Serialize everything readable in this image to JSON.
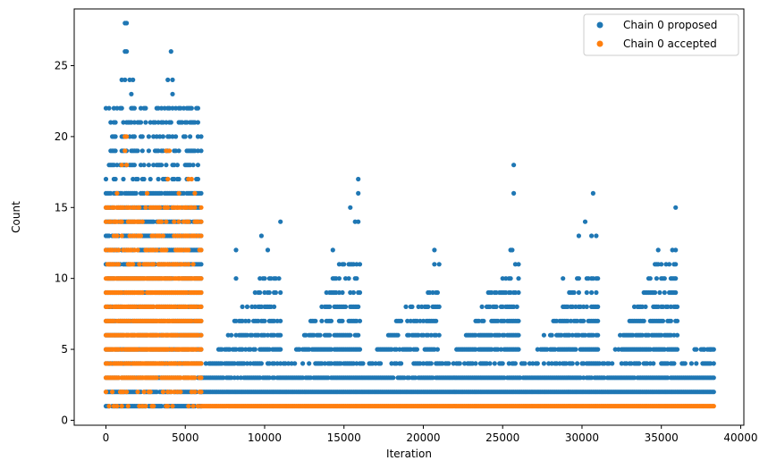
{
  "chart_data": {
    "type": "scatter",
    "title": "",
    "xlabel": "Iteration",
    "ylabel": "Count",
    "xlim": [
      -2000,
      40200
    ],
    "ylim": [
      -0.35,
      29.0
    ],
    "xticks": [
      0,
      5000,
      10000,
      15000,
      20000,
      25000,
      30000,
      35000,
      40000
    ],
    "yticks": [
      0,
      5,
      10,
      15,
      20,
      25
    ],
    "grid": false,
    "legend_position": "top-right",
    "x_max": 38300,
    "series": [
      {
        "name": "Chain 0 proposed",
        "color": "#1f77b4",
        "x_max": 38300,
        "bands": [
          {
            "x": [
              0,
              6000
            ],
            "y": [
              1,
              16
            ],
            "density": 0.9
          },
          {
            "x": [
              0,
              6000
            ],
            "y": [
              17,
              22
            ],
            "density": 0.45
          },
          {
            "x": [
              6000,
              38300
            ],
            "y": [
              2,
              2
            ],
            "density": 1.0
          },
          {
            "x": [
              6000,
              38300
            ],
            "y": [
              3,
              3
            ],
            "density": 0.92
          },
          {
            "x": [
              6000,
              38300
            ],
            "y": [
              4,
              4
            ],
            "density": 0.62
          }
        ],
        "cycles": [
          {
            "x": [
              6000,
              11000
            ],
            "peak": 10
          },
          {
            "x": [
              11000,
              16000
            ],
            "peak": 11
          },
          {
            "x": [
              16000,
              21000
            ],
            "peak": 9
          },
          {
            "x": [
              21000,
              26000
            ],
            "peak": 10
          },
          {
            "x": [
              26000,
              31000
            ],
            "peak": 10
          },
          {
            "x": [
              31000,
              36000
            ],
            "peak": 11
          },
          {
            "x": [
              36000,
              38300
            ],
            "peak": 5
          }
        ],
        "outliers": [
          {
            "x": 1200,
            "y": 28
          },
          {
            "x": 1300,
            "y": 28
          },
          {
            "x": 1200,
            "y": 26
          },
          {
            "x": 1300,
            "y": 26
          },
          {
            "x": 4100,
            "y": 26
          },
          {
            "x": 1000,
            "y": 24
          },
          {
            "x": 1200,
            "y": 24
          },
          {
            "x": 1500,
            "y": 24
          },
          {
            "x": 1700,
            "y": 24
          },
          {
            "x": 3900,
            "y": 24
          },
          {
            "x": 4200,
            "y": 24
          },
          {
            "x": 1600,
            "y": 23
          },
          {
            "x": 4200,
            "y": 23
          },
          {
            "x": 8200,
            "y": 12
          },
          {
            "x": 8200,
            "y": 10
          },
          {
            "x": 9800,
            "y": 13
          },
          {
            "x": 10200,
            "y": 12
          },
          {
            "x": 11000,
            "y": 14
          },
          {
            "x": 15400,
            "y": 15
          },
          {
            "x": 15700,
            "y": 14
          },
          {
            "x": 15900,
            "y": 17
          },
          {
            "x": 15900,
            "y": 16
          },
          {
            "x": 15900,
            "y": 14
          },
          {
            "x": 14300,
            "y": 12
          },
          {
            "x": 20700,
            "y": 12
          },
          {
            "x": 20700,
            "y": 11
          },
          {
            "x": 21000,
            "y": 11
          },
          {
            "x": 25500,
            "y": 12
          },
          {
            "x": 25600,
            "y": 12
          },
          {
            "x": 25700,
            "y": 18
          },
          {
            "x": 25700,
            "y": 16
          },
          {
            "x": 25800,
            "y": 11
          },
          {
            "x": 26000,
            "y": 11
          },
          {
            "x": 30200,
            "y": 14
          },
          {
            "x": 29800,
            "y": 13
          },
          {
            "x": 30600,
            "y": 13
          },
          {
            "x": 30900,
            "y": 13
          },
          {
            "x": 30700,
            "y": 16
          },
          {
            "x": 28800,
            "y": 10
          },
          {
            "x": 35700,
            "y": 12
          },
          {
            "x": 35900,
            "y": 12
          },
          {
            "x": 35900,
            "y": 15
          },
          {
            "x": 34800,
            "y": 12
          },
          {
            "x": 34600,
            "y": 11
          },
          {
            "x": 35300,
            "y": 11
          },
          {
            "x": 37700,
            "y": 5
          },
          {
            "x": 38100,
            "y": 5
          }
        ]
      },
      {
        "name": "Chain 0 accepted",
        "color": "#ff7f0e",
        "x_max": 38300,
        "bands": [
          {
            "x": [
              0,
              6000
            ],
            "y": [
              3,
              10
            ],
            "density": 0.93
          },
          {
            "x": [
              0,
              6000
            ],
            "y": [
              11,
              15
            ],
            "density": 0.55
          },
          {
            "x": [
              0,
              6000
            ],
            "y": [
              2,
              2
            ],
            "density": 0.35
          },
          {
            "x": [
              0,
              6000
            ],
            "y": [
              1,
              1
            ],
            "density": 0.25
          },
          {
            "x": [
              6000,
              38300
            ],
            "y": [
              1,
              1
            ],
            "density": 1.0
          }
        ],
        "outliers": [
          {
            "x": 1200,
            "y": 20
          },
          {
            "x": 1300,
            "y": 20
          },
          {
            "x": 1200,
            "y": 19
          },
          {
            "x": 4000,
            "y": 19
          },
          {
            "x": 3800,
            "y": 19
          },
          {
            "x": 1300,
            "y": 18
          },
          {
            "x": 1000,
            "y": 18
          },
          {
            "x": 3900,
            "y": 17
          },
          {
            "x": 5200,
            "y": 17
          },
          {
            "x": 5400,
            "y": 17
          },
          {
            "x": 4600,
            "y": 16
          },
          {
            "x": 5600,
            "y": 16
          },
          {
            "x": 700,
            "y": 16
          },
          {
            "x": 2600,
            "y": 16
          }
        ]
      }
    ]
  }
}
